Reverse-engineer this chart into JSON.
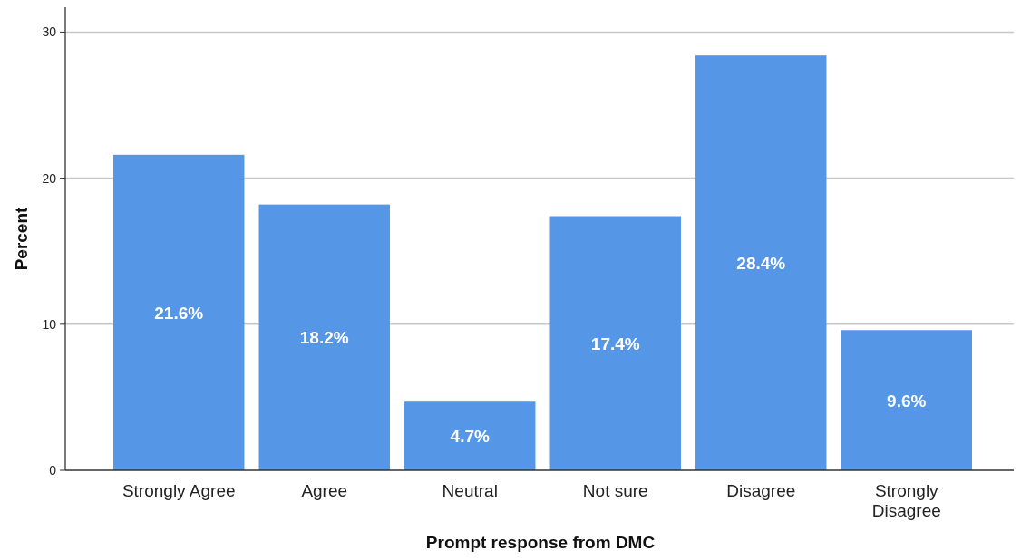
{
  "chart_data": {
    "type": "bar",
    "xlabel": "Prompt response from DMC",
    "ylabel": "Percent",
    "categories": [
      "Strongly Agree",
      "Agree",
      "Neutral",
      "Not sure",
      "Disagree",
      "Strongly Disagree"
    ],
    "values": [
      21.6,
      18.2,
      4.7,
      17.4,
      28.4,
      9.6
    ],
    "value_labels": [
      "21.6%",
      "18.2%",
      "4.7%",
      "17.4%",
      "28.4%",
      "9.6%"
    ],
    "color": "#5596e6",
    "ylim": [
      0,
      31.7
    ],
    "yticks": [
      0,
      10,
      20,
      30
    ],
    "grid": "y"
  }
}
